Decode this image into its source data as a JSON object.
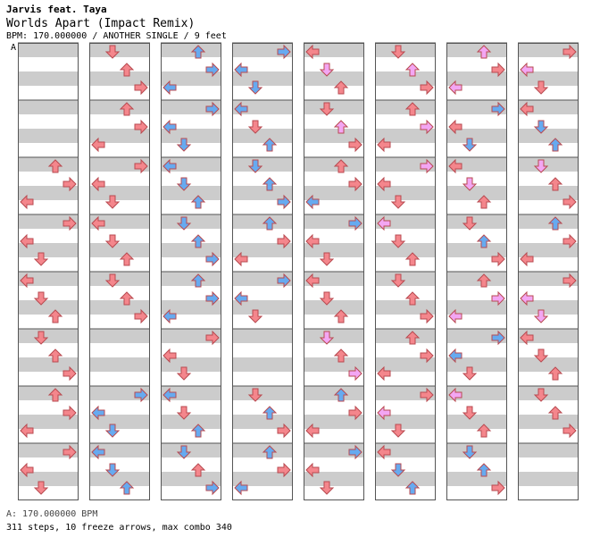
{
  "song": {
    "artist": "Jarvis feat. Taya",
    "title": "Worlds Apart (Impact Remix)",
    "info": "BPM: 170.000000 / ANOTHER SINGLE / 9 feet"
  },
  "marker": "A",
  "footer": {
    "bpm": "A: 170.000000 BPM",
    "stats": "311 steps, 10 freeze arrows, max combo 340"
  },
  "colors": {
    "red": "#f4868c",
    "blue": "#66aaf0",
    "pink": "#f3a6f3",
    "freeze": "#b7f0b7",
    "stripe": "#cccccc"
  },
  "chart_data": {
    "type": "step-chart",
    "columns": 8,
    "measures_per_column": 8,
    "lanes": [
      "left",
      "down",
      "up",
      "right"
    ],
    "steps": 311,
    "freeze_arrows": 10,
    "max_combo": 340,
    "notes": [
      [
        0,
        2,
        0,
        "red"
      ],
      [
        0,
        2,
        1,
        "red"
      ],
      [
        0,
        2,
        2,
        "red"
      ],
      [
        0,
        3,
        0,
        "red"
      ],
      [
        0,
        3,
        1,
        "red"
      ],
      [
        0,
        3,
        2,
        "red"
      ],
      [
        0,
        4,
        0,
        "red"
      ],
      [
        0,
        4,
        1,
        "red"
      ],
      [
        0,
        4,
        2,
        "red"
      ],
      [
        0,
        5,
        0,
        "red"
      ],
      [
        0,
        5,
        1,
        "red"
      ],
      [
        0,
        5,
        2,
        "red"
      ],
      [
        0,
        6,
        0,
        "red"
      ],
      [
        0,
        6,
        1,
        "red"
      ],
      [
        0,
        6,
        2,
        "red"
      ],
      [
        0,
        7,
        0,
        "red"
      ],
      [
        0,
        7,
        1,
        "red"
      ],
      [
        0,
        7,
        2,
        "red"
      ],
      [
        1,
        0,
        0,
        "red"
      ],
      [
        1,
        0,
        1,
        "red"
      ],
      [
        1,
        0,
        2,
        "red"
      ],
      [
        1,
        1,
        0,
        "red"
      ],
      [
        1,
        1,
        1,
        "red"
      ],
      [
        1,
        1,
        2,
        "red"
      ],
      [
        1,
        2,
        0,
        "red"
      ],
      [
        1,
        2,
        1,
        "red"
      ],
      [
        1,
        2,
        2,
        "red"
      ],
      [
        1,
        3,
        0,
        "red"
      ],
      [
        1,
        3,
        1,
        "red"
      ],
      [
        1,
        3,
        2,
        "red"
      ],
      [
        1,
        4,
        0,
        "red"
      ],
      [
        1,
        4,
        1,
        "red"
      ],
      [
        1,
        4,
        2,
        "red"
      ],
      [
        1,
        6,
        0,
        "blue"
      ],
      [
        1,
        6,
        1,
        "blue"
      ],
      [
        1,
        6,
        2,
        "blue"
      ],
      [
        1,
        7,
        0,
        "blue"
      ],
      [
        1,
        7,
        1,
        "blue"
      ],
      [
        1,
        7,
        2,
        "blue"
      ],
      [
        2,
        0,
        0,
        "blue"
      ],
      [
        2,
        0,
        1,
        "blue"
      ],
      [
        2,
        0,
        2,
        "blue"
      ],
      [
        2,
        1,
        0,
        "blue"
      ],
      [
        2,
        1,
        1,
        "blue"
      ],
      [
        2,
        1,
        2,
        "blue"
      ],
      [
        2,
        2,
        0,
        "blue"
      ],
      [
        2,
        2,
        1,
        "blue"
      ],
      [
        2,
        2,
        2,
        "blue"
      ],
      [
        2,
        3,
        0,
        "blue"
      ],
      [
        2,
        3,
        1,
        "blue"
      ],
      [
        2,
        3,
        2,
        "blue"
      ],
      [
        2,
        4,
        0,
        "blue"
      ],
      [
        2,
        4,
        1,
        "blue"
      ],
      [
        2,
        4,
        2,
        "blue"
      ],
      [
        2,
        5,
        0,
        "red"
      ],
      [
        2,
        5,
        1,
        "red"
      ],
      [
        2,
        5,
        2,
        "red"
      ],
      [
        2,
        6,
        0,
        "blue"
      ],
      [
        2,
        6,
        1,
        "red"
      ],
      [
        2,
        6,
        2,
        "blue"
      ],
      [
        2,
        7,
        0,
        "blue"
      ],
      [
        2,
        7,
        1,
        "red"
      ],
      [
        2,
        7,
        2,
        "blue"
      ],
      [
        3,
        0,
        0,
        "blue"
      ],
      [
        3,
        0,
        1,
        "blue"
      ],
      [
        3,
        0,
        2,
        "blue"
      ],
      [
        3,
        1,
        0,
        "blue"
      ],
      [
        3,
        1,
        1,
        "red"
      ],
      [
        3,
        1,
        2,
        "blue"
      ],
      [
        3,
        2,
        0,
        "blue"
      ],
      [
        3,
        2,
        1,
        "blue"
      ],
      [
        3,
        2,
        2,
        "blue"
      ],
      [
        3,
        3,
        0,
        "blue"
      ],
      [
        3,
        3,
        1,
        "red"
      ],
      [
        3,
        3,
        2,
        "red"
      ],
      [
        3,
        4,
        0,
        "blue"
      ],
      [
        3,
        4,
        1,
        "blue"
      ],
      [
        3,
        4,
        2,
        "red"
      ],
      [
        3,
        6,
        0,
        "red"
      ],
      [
        3,
        6,
        1,
        "blue"
      ],
      [
        3,
        6,
        2,
        "red"
      ],
      [
        3,
        7,
        0,
        "blue"
      ],
      [
        3,
        7,
        1,
        "red"
      ],
      [
        3,
        7,
        2,
        "blue"
      ],
      [
        4,
        0,
        0,
        "red"
      ],
      [
        4,
        0,
        1,
        "pink"
      ],
      [
        4,
        0,
        2,
        "red"
      ],
      [
        4,
        1,
        0,
        "red"
      ],
      [
        4,
        1,
        1,
        "pink"
      ],
      [
        4,
        1,
        2,
        "red"
      ],
      [
        4,
        2,
        0,
        "red"
      ],
      [
        4,
        2,
        1,
        "red"
      ],
      [
        4,
        2,
        2,
        "blue"
      ],
      [
        4,
        3,
        0,
        "blue"
      ],
      [
        4,
        3,
        1,
        "red"
      ],
      [
        4,
        3,
        2,
        "red"
      ],
      [
        4,
        4,
        0,
        "red"
      ],
      [
        4,
        4,
        1,
        "red"
      ],
      [
        4,
        4,
        2,
        "red"
      ],
      [
        4,
        5,
        0,
        "pink"
      ],
      [
        4,
        5,
        1,
        "red"
      ],
      [
        4,
        5,
        2,
        "pink"
      ],
      [
        4,
        6,
        0,
        "blue"
      ],
      [
        4,
        6,
        1,
        "red"
      ],
      [
        4,
        6,
        2,
        "red"
      ],
      [
        4,
        7,
        0,
        "blue"
      ],
      [
        4,
        7,
        1,
        "red"
      ],
      [
        4,
        7,
        2,
        "red"
      ],
      [
        5,
        0,
        0,
        "red"
      ],
      [
        5,
        0,
        1,
        "pink"
      ],
      [
        5,
        0,
        2,
        "red"
      ],
      [
        5,
        1,
        0,
        "red"
      ],
      [
        5,
        1,
        1,
        "pink"
      ],
      [
        5,
        1,
        2,
        "red"
      ],
      [
        5,
        2,
        0,
        "pink"
      ],
      [
        5,
        2,
        1,
        "red"
      ],
      [
        5,
        2,
        2,
        "red"
      ],
      [
        5,
        3,
        0,
        "pink"
      ],
      [
        5,
        3,
        1,
        "red"
      ],
      [
        5,
        3,
        2,
        "red"
      ],
      [
        5,
        4,
        0,
        "red"
      ],
      [
        5,
        4,
        1,
        "red"
      ],
      [
        5,
        4,
        2,
        "red"
      ],
      [
        5,
        5,
        0,
        "red"
      ],
      [
        5,
        5,
        1,
        "red"
      ],
      [
        5,
        5,
        2,
        "red"
      ],
      [
        5,
        6,
        0,
        "red"
      ],
      [
        5,
        6,
        1,
        "pink"
      ],
      [
        5,
        6,
        2,
        "red"
      ],
      [
        5,
        7,
        0,
        "red"
      ],
      [
        5,
        7,
        1,
        "blue"
      ],
      [
        5,
        7,
        2,
        "blue"
      ],
      [
        6,
        0,
        0,
        "pink"
      ],
      [
        6,
        0,
        1,
        "red"
      ],
      [
        6,
        0,
        2,
        "pink"
      ],
      [
        6,
        1,
        0,
        "blue"
      ],
      [
        6,
        1,
        1,
        "red"
      ],
      [
        6,
        1,
        2,
        "blue"
      ],
      [
        6,
        2,
        0,
        "red"
      ],
      [
        6,
        2,
        1,
        "pink"
      ],
      [
        6,
        2,
        2,
        "red"
      ],
      [
        6,
        3,
        0,
        "red"
      ],
      [
        6,
        3,
        1,
        "blue"
      ],
      [
        6,
        3,
        2,
        "red"
      ],
      [
        6,
        4,
        0,
        "red"
      ],
      [
        6,
        4,
        1,
        "pink"
      ],
      [
        6,
        4,
        2,
        "pink"
      ],
      [
        6,
        5,
        0,
        "blue"
      ],
      [
        6,
        5,
        1,
        "blue"
      ],
      [
        6,
        5,
        2,
        "red"
      ],
      [
        6,
        6,
        0,
        "pink"
      ],
      [
        6,
        6,
        1,
        "red"
      ],
      [
        6,
        6,
        2,
        "red"
      ],
      [
        6,
        7,
        0,
        "blue"
      ],
      [
        6,
        7,
        1,
        "blue"
      ],
      [
        6,
        7,
        2,
        "red"
      ],
      [
        7,
        0,
        0,
        "red"
      ],
      [
        7,
        0,
        1,
        "pink"
      ],
      [
        7,
        0,
        2,
        "red"
      ],
      [
        7,
        1,
        0,
        "red"
      ],
      [
        7,
        1,
        1,
        "blue"
      ],
      [
        7,
        1,
        2,
        "blue"
      ],
      [
        7,
        2,
        0,
        "pink"
      ],
      [
        7,
        2,
        1,
        "red"
      ],
      [
        7,
        2,
        2,
        "red"
      ],
      [
        7,
        3,
        0,
        "blue"
      ],
      [
        7,
        3,
        1,
        "red"
      ],
      [
        7,
        3,
        2,
        "red"
      ],
      [
        7,
        4,
        0,
        "red"
      ],
      [
        7,
        4,
        1,
        "pink"
      ],
      [
        7,
        4,
        2,
        "pink"
      ],
      [
        7,
        5,
        0,
        "red"
      ],
      [
        7,
        5,
        1,
        "red"
      ],
      [
        7,
        5,
        2,
        "red"
      ],
      [
        7,
        6,
        0,
        "red"
      ],
      [
        7,
        6,
        1,
        "red"
      ],
      [
        7,
        6,
        2,
        "red"
      ]
    ]
  }
}
